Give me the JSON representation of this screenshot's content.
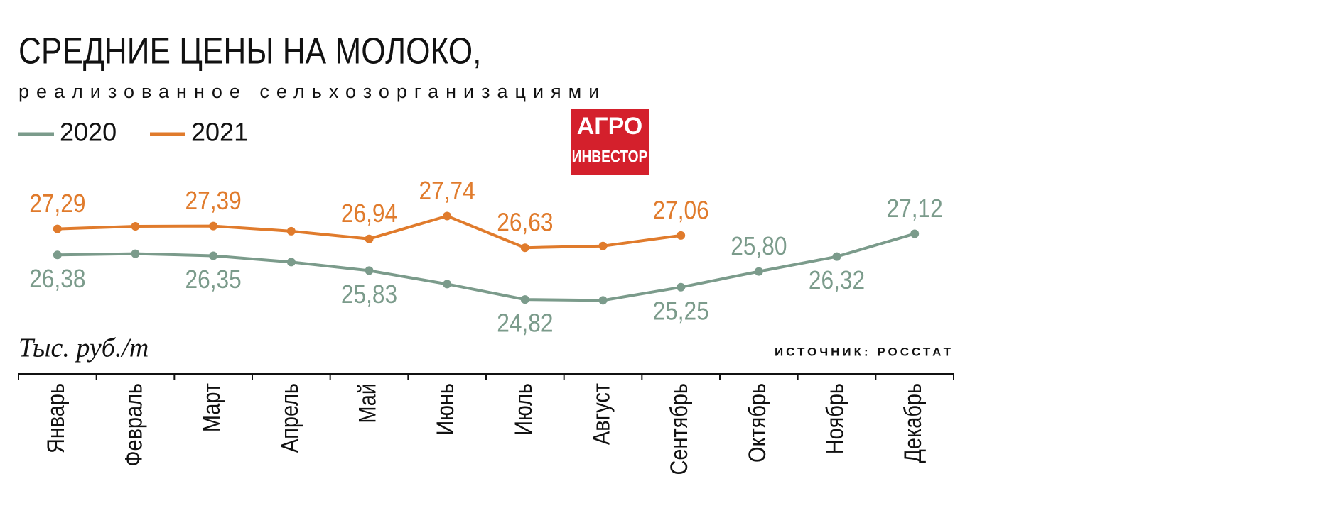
{
  "chart_data": {
    "type": "line",
    "title": "СРЕДНИЕ ЦЕНЫ НА МОЛОКО,",
    "subtitle": "реализованное сельхозорганизациями",
    "unit_label": "Тыс. руб./т",
    "source": "ИСТОЧНИК: РОССТАТ",
    "logo": [
      "АГРО",
      "ИНВЕСТОР"
    ],
    "categories": [
      "Январь",
      "Февраль",
      "Март",
      "Апрель",
      "Май",
      "Июнь",
      "Июль",
      "Август",
      "Сентябрь",
      "Октябрь",
      "Ноябрь",
      "Декабрь"
    ],
    "ylim": [
      24.5,
      28
    ],
    "series": [
      {
        "name": "2020",
        "color": "#7b9b8b",
        "values": [
          26.38,
          26.42,
          26.35,
          26.13,
          25.83,
          25.36,
          24.82,
          24.79,
          25.25,
          25.8,
          26.32,
          27.12
        ],
        "value_labels": [
          "26,38",
          null,
          "26,35",
          null,
          "25,83",
          null,
          "24,82",
          null,
          "25,25",
          "25,80",
          "26,32",
          "27,12"
        ]
      },
      {
        "name": "2021",
        "color": "#e07b2c",
        "values": [
          27.29,
          27.38,
          27.39,
          27.21,
          26.94,
          27.74,
          26.63,
          26.69,
          27.06,
          null,
          null,
          null
        ],
        "value_labels": [
          "27,29",
          null,
          "27,39",
          null,
          "26,94",
          "27,74",
          "26,63",
          null,
          "27,06",
          null,
          null,
          null
        ]
      }
    ]
  }
}
